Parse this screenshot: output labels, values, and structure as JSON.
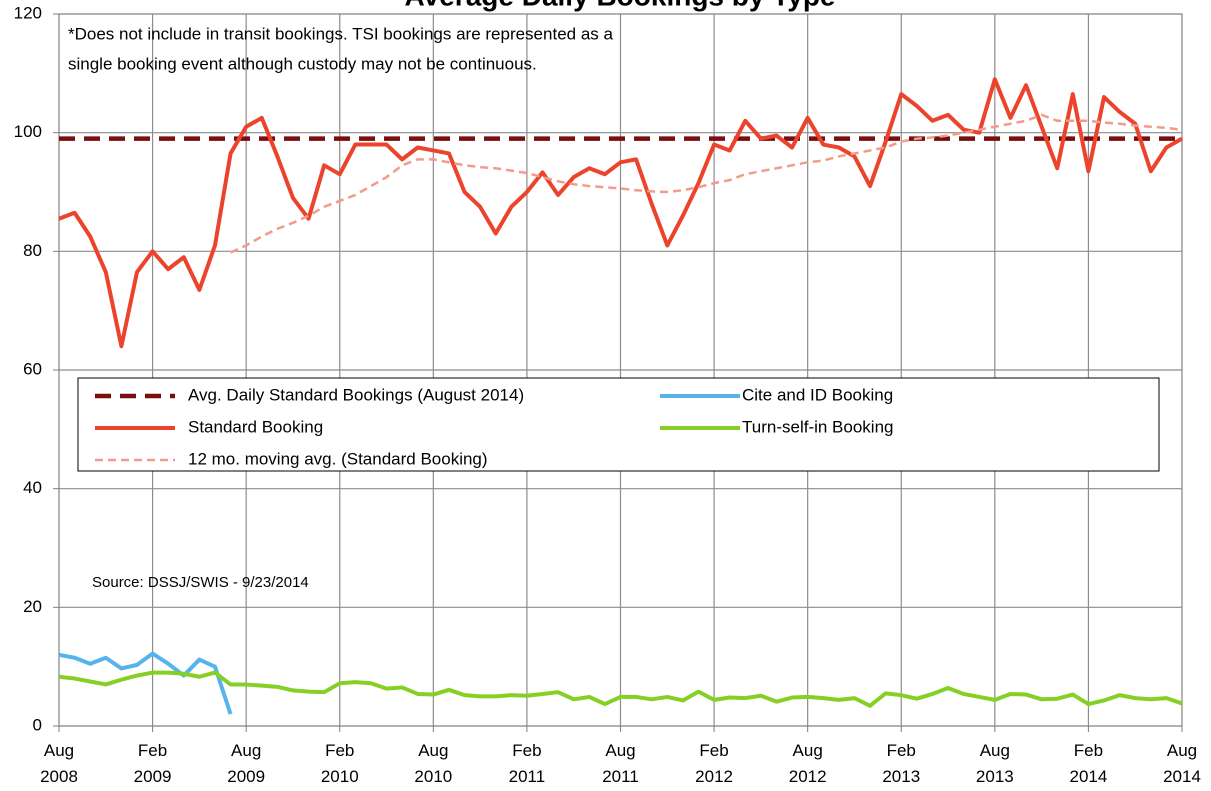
{
  "chart_data": {
    "type": "line",
    "title": "Average Daily Bookings by Type",
    "annotations": [
      "*Does not include in transit bookings. TSI bookings are represented as a",
      "single booking event although custody may not be continuous."
    ],
    "source": "Source: DSSJ/SWIS - 9/23/2014",
    "categories": [
      "Aug 2008",
      null,
      null,
      null,
      null,
      null,
      "Feb 2009",
      null,
      null,
      null,
      null,
      null,
      "Aug 2009",
      null,
      null,
      null,
      null,
      null,
      "Feb 2010",
      null,
      null,
      null,
      null,
      null,
      "Aug 2010",
      null,
      null,
      null,
      null,
      null,
      "Feb 2011",
      null,
      null,
      null,
      null,
      null,
      "Aug 2011",
      null,
      null,
      null,
      null,
      null,
      "Feb 2012",
      null,
      null,
      null,
      null,
      null,
      "Aug 2012",
      null,
      null,
      null,
      null,
      null,
      "Feb 2013",
      null,
      null,
      null,
      null,
      null,
      "Aug 2013",
      null,
      null,
      null,
      null,
      null,
      "Feb 2014",
      null,
      null,
      null,
      null,
      null,
      "Aug 2014"
    ],
    "ylim": [
      0,
      120
    ],
    "yticks": [
      0,
      20,
      40,
      60,
      80,
      100,
      120
    ],
    "grid": true,
    "series": [
      {
        "name": "Avg. Daily Standard Bookings (August 2014)",
        "color": "#7a0e0e",
        "dashed": true,
        "values": [
          99,
          99,
          99,
          99,
          99,
          99,
          99,
          99,
          99,
          99,
          99,
          99,
          99,
          99,
          99,
          99,
          99,
          99,
          99,
          99,
          99,
          99,
          99,
          99,
          99,
          99,
          99,
          99,
          99,
          99,
          99,
          99,
          99,
          99,
          99,
          99,
          99,
          99,
          99,
          99,
          99,
          99,
          99,
          99,
          99,
          99,
          99,
          99,
          99,
          99,
          99,
          99,
          99,
          99,
          99,
          99,
          99,
          99,
          99,
          99,
          99,
          99,
          99,
          99,
          99,
          99,
          99,
          99,
          99,
          99,
          99,
          99,
          99
        ]
      },
      {
        "name": "Cite and ID Booking",
        "color": "#55b3ee",
        "dashed": false,
        "values": [
          12,
          11.5,
          10.5,
          11.5,
          9.7,
          10.3,
          12.2,
          10.5,
          8.5,
          11.2,
          10,
          2,
          null,
          null,
          null,
          null,
          null,
          null,
          null,
          null,
          null,
          null,
          null,
          null,
          null,
          null,
          null,
          null,
          null,
          null,
          null,
          null,
          null,
          null,
          null,
          null,
          null,
          null,
          null,
          null,
          null,
          null,
          null,
          null,
          null,
          null,
          null,
          null,
          null,
          null,
          null,
          null,
          null,
          null,
          null,
          null,
          null,
          null,
          null,
          null,
          null,
          null,
          null,
          null,
          null,
          null,
          null,
          null,
          null,
          null,
          null,
          null,
          null
        ]
      },
      {
        "name": "Standard Booking",
        "color": "#ec432c",
        "dashed": false,
        "values": [
          85.5,
          86.5,
          82.5,
          76.5,
          64,
          76.5,
          80,
          77,
          79,
          73.5,
          81,
          96.5,
          101,
          102.5,
          96,
          89,
          85.5,
          94.5,
          93,
          98,
          98,
          98,
          95.5,
          97.5,
          97,
          96.5,
          90,
          87.5,
          83,
          87.5,
          90,
          93.3,
          89.5,
          92.5,
          94,
          93,
          95,
          95.5,
          88,
          81,
          86,
          91.5,
          98,
          97,
          102,
          99,
          99.5,
          97.5,
          102.5,
          98,
          97.5,
          96,
          91,
          98.5,
          106.5,
          104.5,
          102,
          103,
          100.5,
          100,
          109,
          102.5,
          108,
          101,
          94,
          106.5,
          93.5,
          106,
          103.5,
          101.5,
          93.5,
          97.5,
          99
        ]
      },
      {
        "name": "Turn-self-in Booking",
        "color": "#86cf25",
        "dashed": false,
        "values": [
          8.3,
          8,
          7.5,
          7,
          7.8,
          8.5,
          9,
          9,
          8.8,
          8.3,
          9,
          7,
          7,
          6.8,
          6.6,
          6,
          5.8,
          5.7,
          7.2,
          7.4,
          7.2,
          6.3,
          6.5,
          5.4,
          5.3,
          6.1,
          5.2,
          5,
          5,
          5.2,
          5.1,
          5.4,
          5.7,
          4.5,
          4.9,
          3.7,
          4.9,
          4.9,
          4.5,
          4.9,
          4.3,
          5.8,
          4.4,
          4.8,
          4.7,
          5.1,
          4.1,
          4.8,
          4.9,
          4.7,
          4.4,
          4.7,
          3.4,
          5.5,
          5.2,
          4.6,
          5.4,
          6.4,
          5.4,
          4.9,
          4.4,
          5.4,
          5.3,
          4.5,
          4.6,
          5.3,
          3.7,
          4.3,
          5.2,
          4.7,
          4.5,
          4.7,
          3.8
        ]
      },
      {
        "name": "12 mo. moving avg. (Standard Booking)",
        "color": "#f39a8a",
        "dashed": true,
        "values": [
          null,
          null,
          null,
          null,
          null,
          null,
          null,
          null,
          null,
          null,
          null,
          79.8,
          81,
          82.5,
          83.8,
          84.8,
          86,
          87.5,
          88.5,
          89.5,
          91,
          92.5,
          94.5,
          95.5,
          95.5,
          95,
          94.5,
          94.2,
          94,
          93.6,
          93.2,
          92.5,
          91.8,
          91.3,
          91,
          90.8,
          90.6,
          90.3,
          90.1,
          90,
          90.3,
          90.8,
          91.5,
          92,
          93,
          93.5,
          94,
          94.5,
          95,
          95.3,
          96,
          96.5,
          97,
          97.5,
          98.5,
          99,
          99.2,
          99.5,
          100,
          100.5,
          101,
          101.5,
          102,
          103,
          102,
          102,
          102,
          101.7,
          101.5,
          101.2,
          101,
          100.8,
          100.5
        ]
      }
    ]
  }
}
